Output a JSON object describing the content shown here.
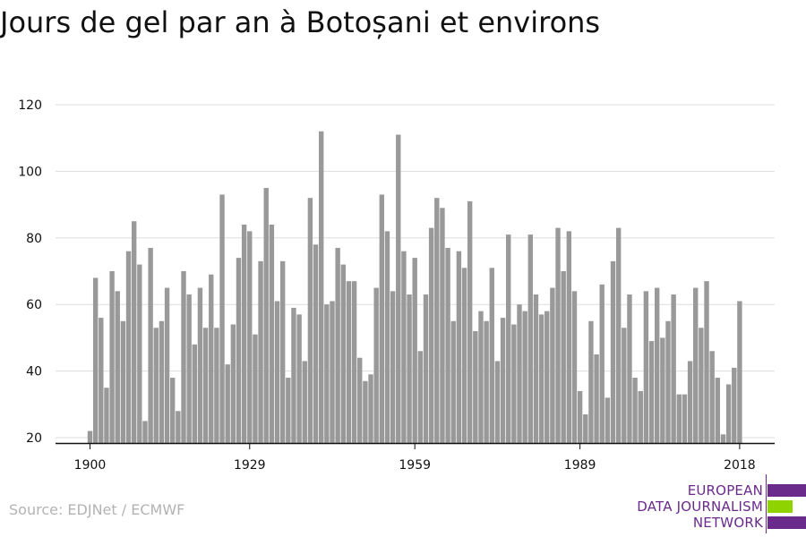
{
  "title": "Jours de gel par an à Botoșani et environs",
  "source": "Source: EDJNet / ECMWF",
  "logo": {
    "lines": [
      "EUROPEAN",
      "DATA JOURNALISM",
      "NETWORK"
    ],
    "colors": {
      "purple": "#6a2a8c",
      "green": "#8fd400"
    }
  },
  "colors": {
    "bar": "#999999",
    "grid": "#dddddd",
    "axis": "#111111"
  },
  "chart_data": {
    "type": "bar",
    "title": "Jours de gel par an à Botoșani et environs",
    "xlabel": "",
    "ylabel": "",
    "ylim": [
      20,
      120
    ],
    "yticks": [
      20,
      40,
      60,
      80,
      100,
      120
    ],
    "xticks": [
      1900,
      1929,
      1959,
      1989,
      2018
    ],
    "grid": true,
    "x_start": 1900,
    "x_end": 2018,
    "values": [
      22,
      68,
      56,
      35,
      70,
      64,
      55,
      76,
      85,
      72,
      25,
      77,
      53,
      55,
      65,
      38,
      28,
      70,
      63,
      48,
      65,
      53,
      69,
      53,
      93,
      42,
      54,
      74,
      84,
      82,
      51,
      73,
      95,
      84,
      61,
      73,
      38,
      59,
      57,
      43,
      92,
      78,
      112,
      60,
      61,
      77,
      72,
      67,
      67,
      44,
      37,
      39,
      65,
      93,
      82,
      64,
      111,
      76,
      63,
      74,
      46,
      63,
      83,
      92,
      89,
      77,
      55,
      76,
      71,
      91,
      52,
      58,
      55,
      71,
      43,
      56,
      81,
      54,
      60,
      58,
      81,
      63,
      57,
      58,
      65,
      83,
      70,
      82,
      64,
      34,
      27,
      55,
      45,
      66,
      32,
      73,
      83,
      53,
      63,
      38,
      34,
      64,
      49,
      65,
      50,
      55,
      63,
      33,
      33,
      43,
      65,
      53,
      67,
      46,
      38,
      21,
      36,
      41,
      61
    ]
  }
}
